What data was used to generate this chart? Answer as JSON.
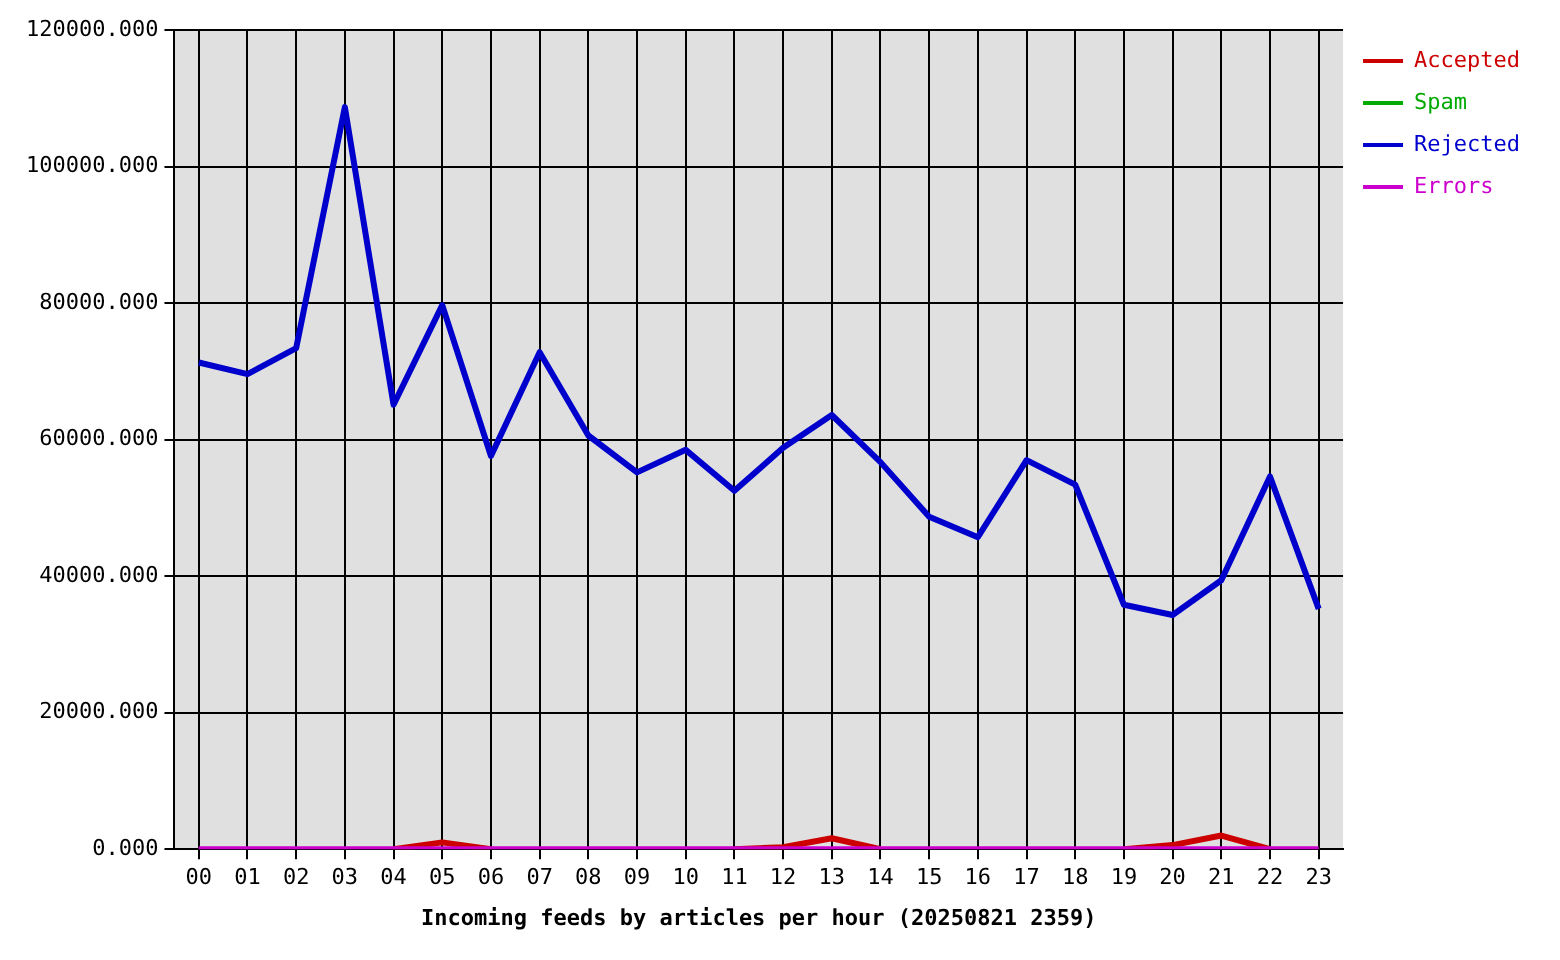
{
  "chart_data": {
    "type": "line",
    "xlabel": "Incoming feeds by articles per hour (20250821 2359)",
    "categories": [
      "00",
      "01",
      "02",
      "03",
      "04",
      "05",
      "06",
      "07",
      "08",
      "09",
      "10",
      "11",
      "12",
      "13",
      "14",
      "15",
      "16",
      "17",
      "18",
      "19",
      "20",
      "21",
      "22",
      "23"
    ],
    "series": [
      {
        "name": "Accepted",
        "color": "#cc0000",
        "values": [
          null,
          null,
          null,
          null,
          0,
          1000,
          0,
          null,
          null,
          null,
          null,
          0,
          300,
          1600,
          0,
          null,
          null,
          null,
          null,
          0,
          600,
          2000,
          0,
          null
        ]
      },
      {
        "name": "Spam",
        "color": "#00aa00",
        "values": [
          null,
          null,
          null,
          null,
          null,
          null,
          null,
          null,
          null,
          null,
          null,
          null,
          null,
          null,
          null,
          null,
          null,
          null,
          null,
          null,
          null,
          null,
          null,
          null
        ]
      },
      {
        "name": "Rejected",
        "color": "#0000cc",
        "values": [
          71300,
          69600,
          73400,
          108700,
          65100,
          79700,
          57600,
          72800,
          60600,
          55200,
          58500,
          52500,
          58800,
          63600,
          56700,
          48700,
          45700,
          57000,
          53400,
          35800,
          34300,
          39400,
          54600,
          35200
        ]
      },
      {
        "name": "Errors",
        "color": "#cc00cc",
        "values": [
          0,
          0,
          0,
          0,
          0,
          0,
          0,
          0,
          0,
          0,
          0,
          0,
          0,
          0,
          0,
          0,
          0,
          0,
          0,
          0,
          0,
          0,
          0,
          0
        ]
      }
    ],
    "ylim": [
      0,
      120000
    ],
    "yticks": [
      {
        "value": 0,
        "label": "0.000"
      },
      {
        "value": 20000,
        "label": "20000.000"
      },
      {
        "value": 40000,
        "label": "40000.000"
      },
      {
        "value": 60000,
        "label": "60000.000"
      },
      {
        "value": 80000,
        "label": "80000.000"
      },
      {
        "value": 100000,
        "label": "100000.000"
      },
      {
        "value": 120000,
        "label": "120000.000"
      }
    ],
    "grid": true,
    "legend": "top right"
  }
}
